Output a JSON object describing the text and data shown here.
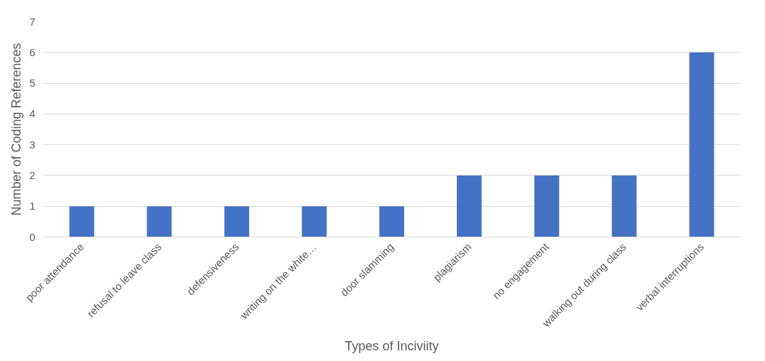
{
  "chart_data": {
    "type": "bar",
    "xlabel": "Types of Inciviity",
    "ylabel": "Number of Coding References",
    "categories": [
      "poor attendance",
      "refusal to leave class",
      "defensiveness",
      "writing on the white…",
      "door slamming",
      "plagiarism",
      "no engagement",
      "walking out during class",
      "verbal interruptions"
    ],
    "values": [
      1,
      1,
      1,
      1,
      1,
      2,
      2,
      2,
      6
    ],
    "color": "#4472c4",
    "ylim": [
      0,
      7
    ],
    "yticks": [
      0,
      1,
      2,
      3,
      4,
      5,
      6,
      7
    ],
    "grid": "y"
  }
}
